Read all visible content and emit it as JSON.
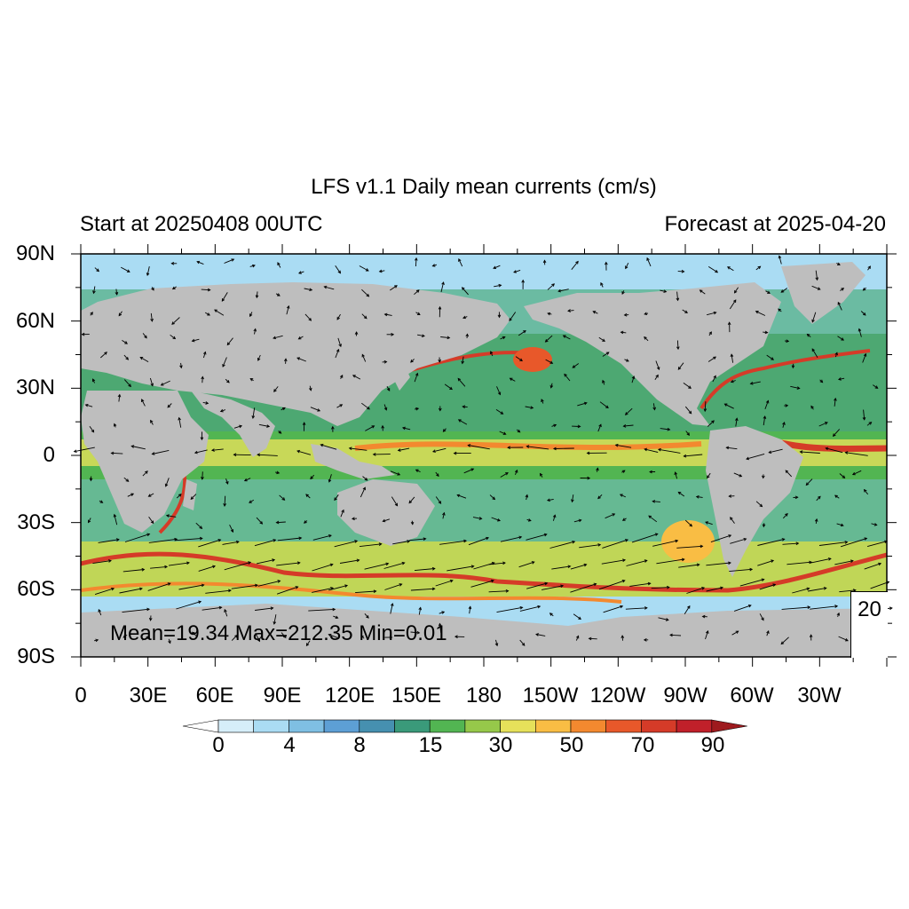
{
  "title": "LFS v1.1 Daily mean currents (cm/s)",
  "start_label": "Start at 20250408 00UTC",
  "forecast_label": "Forecast at 2025-04-20",
  "lat_labels": [
    "90N",
    "60N",
    "30N",
    "0",
    "30S",
    "60S",
    "90S"
  ],
  "lon_labels": [
    "0",
    "30E",
    "60E",
    "90E",
    "120E",
    "150E",
    "180",
    "150W",
    "120W",
    "90W",
    "60W",
    "30W"
  ],
  "stats": "Mean=19.34  Max=212.35  Min=0.01",
  "reference_vector": {
    "label": "20",
    "value": 20,
    "units": "cm/s"
  },
  "colorbar": {
    "labels": [
      "0",
      "4",
      "8",
      "15",
      "30",
      "50",
      "70",
      "90"
    ],
    "levels": [
      0,
      2,
      4,
      6,
      8,
      10,
      15,
      20,
      30,
      40,
      50,
      60,
      70,
      80,
      90
    ],
    "colors": [
      "#ffffff",
      "#d6eef9",
      "#aadcf3",
      "#7fbfe3",
      "#5d9fd5",
      "#4690b0",
      "#3a9a7a",
      "#52b552",
      "#96c84a",
      "#e6e15a",
      "#f9bd44",
      "#f3892f",
      "#e8582a",
      "#d53b28",
      "#c0202a",
      "#9e1a1e"
    ]
  },
  "map_colors": {
    "land": "#bebebe",
    "ocean_low": "#aadcf3",
    "ocean_mid": "#52b552",
    "ocean_high": "#e6e15a",
    "jet": "#d53b28",
    "arrow": "#000000"
  }
}
